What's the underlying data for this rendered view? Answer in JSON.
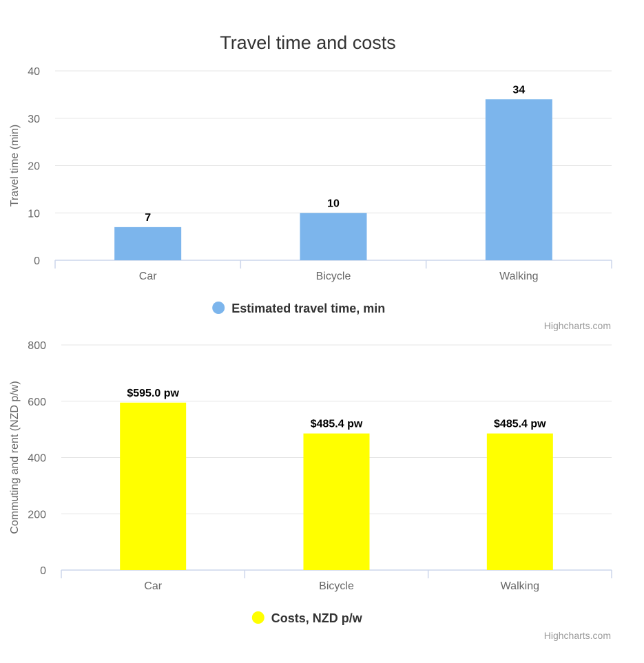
{
  "chart_data": [
    {
      "type": "bar",
      "title": "Travel time and costs",
      "categories": [
        "Car",
        "Bicycle",
        "Walking"
      ],
      "series": [
        {
          "name": "Estimated travel time, min",
          "values": [
            7,
            10,
            34
          ],
          "color": "#7cb5ec"
        }
      ],
      "data_labels": [
        "7",
        "10",
        "34"
      ],
      "xlabel": "",
      "ylabel": "Travel time (min)",
      "ylim": [
        0,
        40
      ],
      "yticks": [
        0,
        10,
        20,
        30,
        40
      ],
      "grid": true,
      "legend_position": "bottom-center",
      "credits": "Highcharts.com"
    },
    {
      "type": "bar",
      "title": "",
      "categories": [
        "Car",
        "Bicycle",
        "Walking"
      ],
      "series": [
        {
          "name": "Costs, NZD p/w",
          "values": [
            595.0,
            485.4,
            485.4
          ],
          "color": "#ffff00"
        }
      ],
      "data_labels": [
        "$595.0 pw",
        "$485.4 pw",
        "$485.4 pw"
      ],
      "xlabel": "",
      "ylabel": "Commuting and rent (NZD p/w)",
      "ylim": [
        0,
        800
      ],
      "yticks": [
        0,
        200,
        400,
        600,
        800
      ],
      "grid": true,
      "legend_position": "bottom-center",
      "credits": "Highcharts.com"
    }
  ]
}
